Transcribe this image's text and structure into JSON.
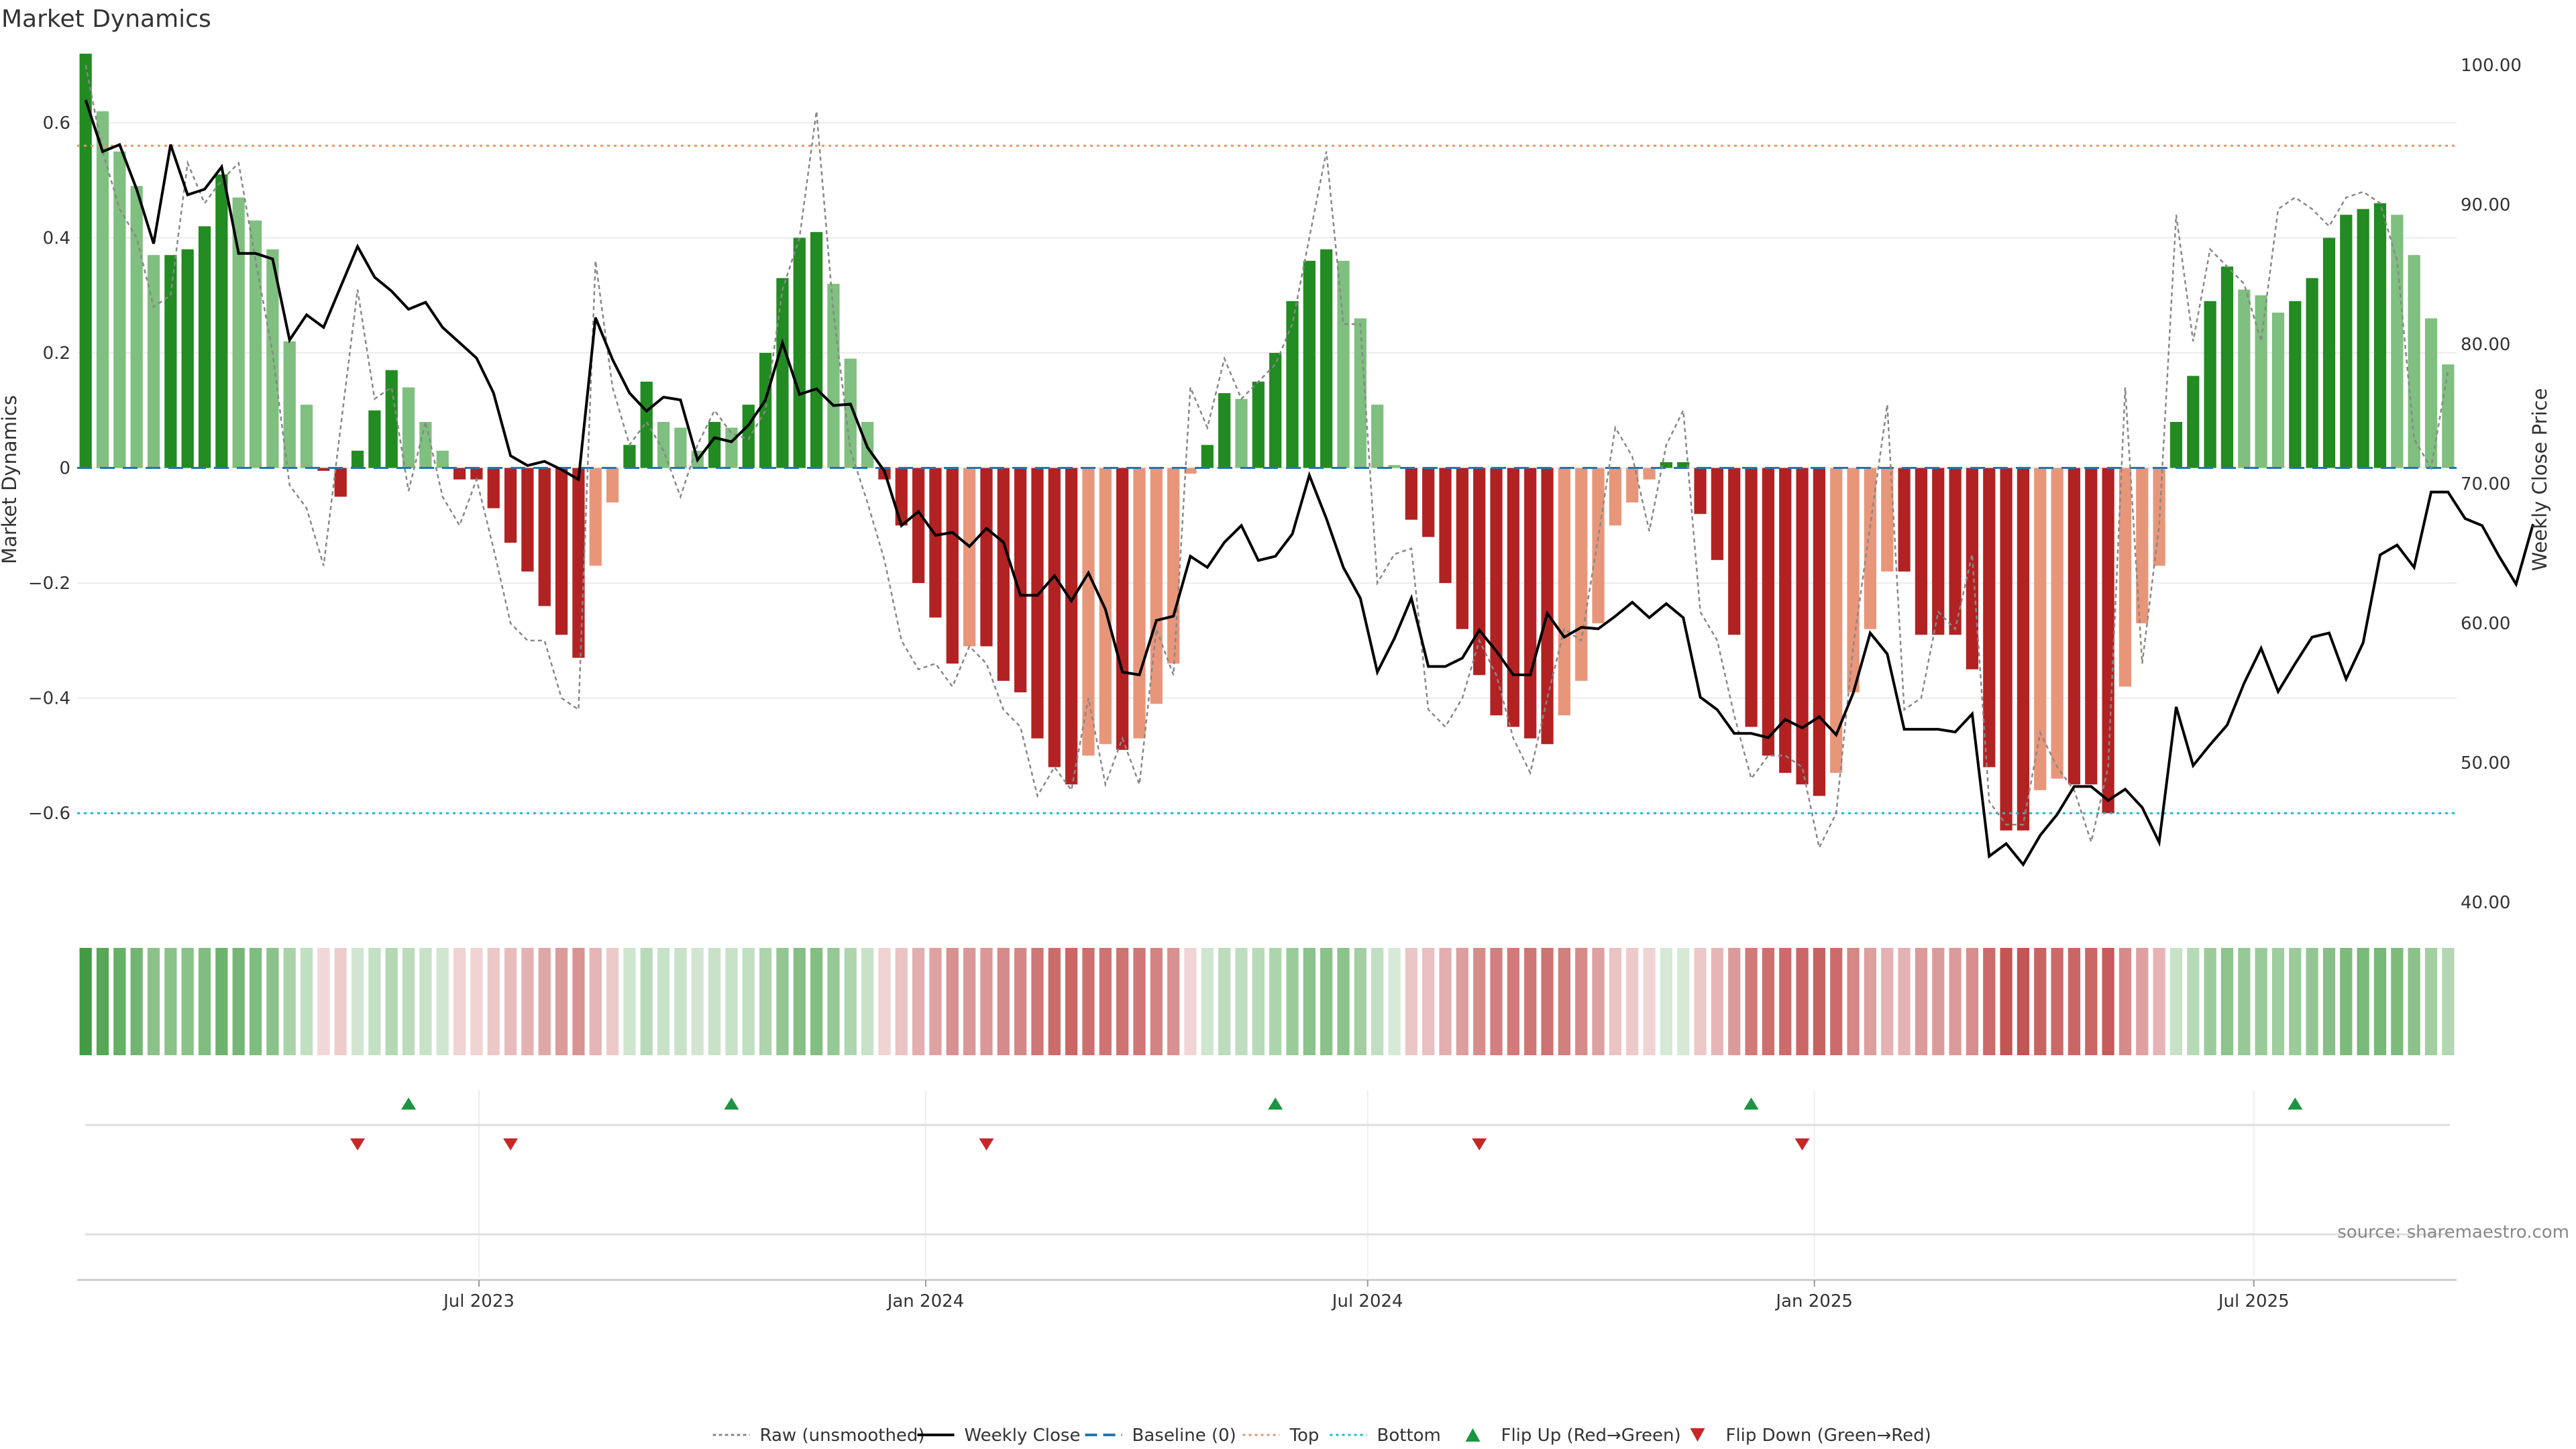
{
  "title": "Market Dynamics",
  "source": "source: sharemaestro.com",
  "legend": [
    {
      "key": "raw",
      "label": "Raw (unsmoothed)",
      "color": "#888888"
    },
    {
      "key": "close",
      "label": "Weekly Close",
      "color": "#000000"
    },
    {
      "key": "baseline",
      "label": "Baseline (0)",
      "color": "#1f77b4"
    },
    {
      "key": "top",
      "label": "Top",
      "color": "#e8956a"
    },
    {
      "key": "bottom",
      "label": "Bottom",
      "color": "#17becf"
    },
    {
      "key": "flipup",
      "label": "Flip Up (Red→Green)",
      "color": "#1a9641"
    },
    {
      "key": "flipdown",
      "label": "Flip Down (Green→Red)",
      "color": "#c62828"
    }
  ],
  "colors": {
    "green_dark": "#228b22",
    "green_light": "#7fbf7f",
    "red_dark": "#b22222",
    "red_light": "#e8967a",
    "grid": "#ebebeb",
    "axis": "#dddddd"
  },
  "chart_data": {
    "type": "bar",
    "subtype": "bar + line (dual axis) with heat strip and flip markers",
    "x_type": "weekly dates",
    "x_start": "2023-01-20",
    "x_ticks": [
      "Jul 2023",
      "Jan 2024",
      "Jul 2024",
      "Jan 2025",
      "Jul 2025"
    ],
    "y_left": {
      "label": "Market Dynamics",
      "range": [
        -0.77,
        0.72
      ],
      "ticks": [
        "0.6",
        "0.4",
        "0.2",
        "0",
        "−0.2",
        "−0.4",
        "−0.6"
      ]
    },
    "y_right": {
      "label": "Weekly Close Price",
      "range": [
        40,
        100
      ],
      "ticks": [
        "100.00",
        "90.00",
        "80.00",
        "70.00",
        "60.00",
        "50.00",
        "40.00"
      ]
    },
    "top_line": 0.56,
    "bottom_line": -0.6,
    "baseline": 0,
    "market_dynamics": [
      0.72,
      0.62,
      0.55,
      0.49,
      0.37,
      0.37,
      0.38,
      0.42,
      0.51,
      0.47,
      0.43,
      0.38,
      0.22,
      0.11,
      -0.005,
      -0.05,
      0.03,
      0.1,
      0.17,
      0.14,
      0.08,
      0.03,
      -0.02,
      -0.02,
      -0.07,
      -0.13,
      -0.18,
      -0.24,
      -0.29,
      -0.33,
      -0.17,
      -0.06,
      0.04,
      0.15,
      0.08,
      0.07,
      0.03,
      0.08,
      0.07,
      0.11,
      0.2,
      0.33,
      0.4,
      0.41,
      0.32,
      0.19,
      0.08,
      -0.02,
      -0.1,
      -0.2,
      -0.26,
      -0.34,
      -0.31,
      -0.31,
      -0.37,
      -0.39,
      -0.47,
      -0.52,
      -0.55,
      -0.5,
      -0.48,
      -0.49,
      -0.47,
      -0.41,
      -0.34,
      -0.01,
      0.04,
      0.13,
      0.12,
      0.15,
      0.2,
      0.29,
      0.36,
      0.38,
      0.36,
      0.26,
      0.11,
      0.005,
      -0.09,
      -0.12,
      -0.2,
      -0.28,
      -0.36,
      -0.43,
      -0.45,
      -0.47,
      -0.48,
      -0.43,
      -0.37,
      -0.27,
      -0.1,
      -0.06,
      -0.02,
      0.01,
      0.01,
      -0.08,
      -0.16,
      -0.29,
      -0.45,
      -0.5,
      -0.53,
      -0.55,
      -0.57,
      -0.53,
      -0.39,
      -0.28,
      -0.18,
      -0.18,
      -0.29,
      -0.29,
      -0.29,
      -0.35,
      -0.52,
      -0.63,
      -0.63,
      -0.56,
      -0.54,
      -0.55,
      -0.55,
      -0.6,
      -0.38,
      -0.27,
      -0.17,
      0.08,
      0.16,
      0.29,
      0.35,
      0.31,
      0.3,
      0.27,
      0.29,
      0.33,
      0.4,
      0.44,
      0.45,
      0.46,
      0.44,
      0.37,
      0.26,
      0.18
    ],
    "raw": [
      0.7,
      0.55,
      0.45,
      0.4,
      0.28,
      0.3,
      0.53,
      0.46,
      0.5,
      0.53,
      0.36,
      0.2,
      -0.03,
      -0.07,
      -0.17,
      0.07,
      0.31,
      0.12,
      0.14,
      -0.04,
      0.08,
      -0.05,
      -0.1,
      -0.02,
      -0.14,
      -0.27,
      -0.3,
      -0.3,
      -0.4,
      -0.42,
      0.36,
      0.14,
      0.04,
      0.08,
      0.03,
      -0.05,
      0.04,
      0.1,
      0.06,
      0.05,
      0.1,
      0.31,
      0.4,
      0.62,
      0.27,
      0.03,
      -0.06,
      -0.16,
      -0.3,
      -0.35,
      -0.34,
      -0.38,
      -0.31,
      -0.34,
      -0.42,
      -0.45,
      -0.57,
      -0.52,
      -0.56,
      -0.4,
      -0.55,
      -0.47,
      -0.55,
      -0.28,
      -0.36,
      0.14,
      0.07,
      0.19,
      0.12,
      0.15,
      0.18,
      0.25,
      0.4,
      0.55,
      0.25,
      0.25,
      -0.2,
      -0.15,
      -0.14,
      -0.42,
      -0.45,
      -0.4,
      -0.3,
      -0.36,
      -0.47,
      -0.53,
      -0.4,
      -0.28,
      -0.3,
      -0.12,
      0.07,
      0.02,
      -0.11,
      0.04,
      0.1,
      -0.25,
      -0.3,
      -0.43,
      -0.54,
      -0.5,
      -0.5,
      -0.52,
      -0.66,
      -0.6,
      -0.31,
      -0.1,
      0.11,
      -0.42,
      -0.4,
      -0.25,
      -0.28,
      -0.15,
      -0.58,
      -0.62,
      -0.62,
      -0.46,
      -0.52,
      -0.56,
      -0.65,
      -0.52,
      0.14,
      -0.34,
      -0.1,
      0.44,
      0.22,
      0.38,
      0.35,
      0.32,
      0.22,
      0.45,
      0.47,
      0.45,
      0.42,
      0.47,
      0.48,
      0.46,
      0.36,
      0.05,
      0.0,
      0.17
    ],
    "weekly_close": [
      97.5,
      93.8,
      94.3,
      91.1,
      87.2,
      94.3,
      90.7,
      91.1,
      92.7,
      86.5,
      86.5,
      86.1,
      80.3,
      82.1,
      81.2,
      84.1,
      87.0,
      84.8,
      83.8,
      82.5,
      83.0,
      81.2,
      80.1,
      79.0,
      76.5,
      72.0,
      71.3,
      71.6,
      71.0,
      70.3,
      81.9,
      78.9,
      76.5,
      75.2,
      76.2,
      76.0,
      71.7,
      73.3,
      73.0,
      74.2,
      76.0,
      80.1,
      76.4,
      76.8,
      75.6,
      75.7,
      72.6,
      70.9,
      67.0,
      68.0,
      66.3,
      66.5,
      65.5,
      66.8,
      65.8,
      62.0,
      62.0,
      63.4,
      61.6,
      63.6,
      61.0,
      56.5,
      56.3,
      60.2,
      60.5,
      64.8,
      64.0,
      65.8,
      67.0,
      64.5,
      64.8,
      66.4,
      70.6,
      67.5,
      64.0,
      61.8,
      56.5,
      58.9,
      61.8,
      56.9,
      56.9,
      57.5,
      59.5,
      58.0,
      56.3,
      56.3,
      60.7,
      59.0,
      59.7,
      59.6,
      60.5,
      61.5,
      60.4,
      61.4,
      60.4,
      54.7,
      53.8,
      52.1,
      52.1,
      51.8,
      53.1,
      52.5,
      53.3,
      52.0,
      55.0,
      59.3,
      57.8,
      52.4,
      52.4,
      52.4,
      52.2,
      53.5,
      43.3,
      44.2,
      42.7,
      44.8,
      46.3,
      48.3,
      48.3,
      47.3,
      48.1,
      46.8,
      44.3,
      54.0,
      49.8,
      51.3,
      52.7,
      55.7,
      58.2,
      55.1,
      57.1,
      59.0,
      59.3,
      56.0,
      58.6,
      64.9,
      65.6,
      64.0,
      69.4,
      69.4,
      67.5,
      67.0,
      64.8,
      62.8,
      67.1
    ],
    "flip_up_dates": [
      "2023-06-02",
      "2023-10-13",
      "2024-05-24",
      "2024-12-06",
      "2025-07-18"
    ],
    "flip_down_dates": [
      "2023-05-12",
      "2023-07-14",
      "2024-01-26",
      "2024-08-16",
      "2024-12-27"
    ]
  }
}
